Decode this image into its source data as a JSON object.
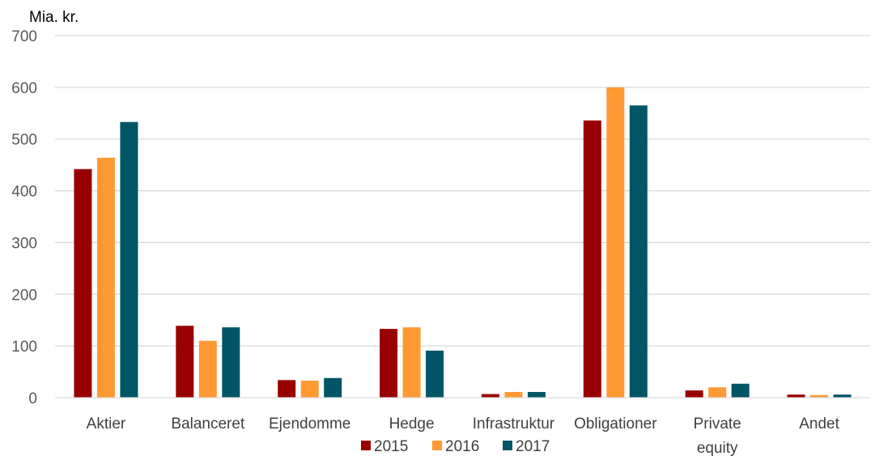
{
  "chart_data": {
    "type": "bar",
    "ylabel": "Mia. kr.",
    "ylim": [
      0,
      700
    ],
    "yticks": [
      "0",
      "100",
      "200",
      "300",
      "400",
      "500",
      "600",
      "700"
    ],
    "grid": true,
    "legend_position": "bottom",
    "categories": [
      [
        "Aktier"
      ],
      [
        "Balanceret"
      ],
      [
        "Ejendomme"
      ],
      [
        "Hedge"
      ],
      [
        "Infrastruktur"
      ],
      [
        "Obligationer"
      ],
      [
        "Private",
        "equity"
      ],
      [
        "Andet"
      ]
    ],
    "series": [
      {
        "name": "2015",
        "color": "#990000",
        "values": [
          442,
          139,
          34,
          133,
          7,
          536,
          14,
          6
        ]
      },
      {
        "name": "2016",
        "color": "#FF9933",
        "values": [
          464,
          110,
          33,
          136,
          11,
          600,
          20,
          5
        ]
      },
      {
        "name": "2017",
        "color": "#005566",
        "values": [
          533,
          136,
          38,
          91,
          11,
          565,
          27,
          6
        ]
      }
    ]
  }
}
